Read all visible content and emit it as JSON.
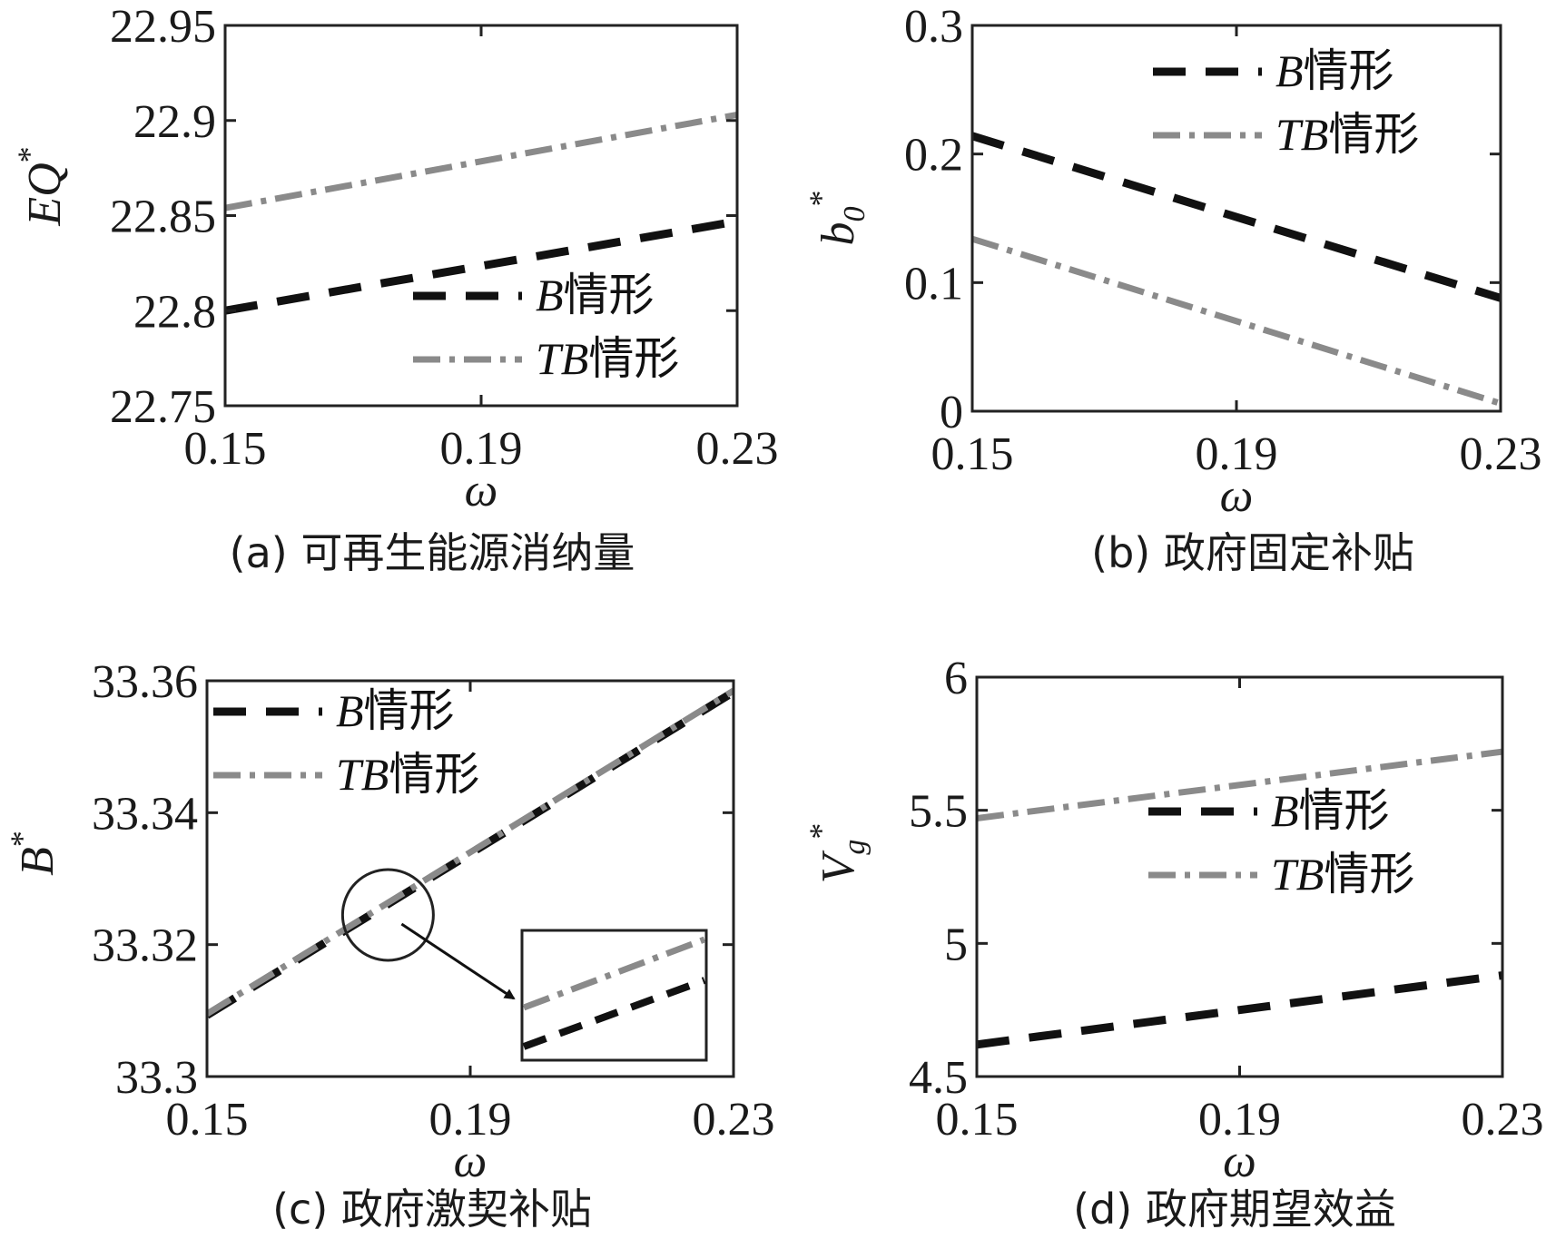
{
  "chart_data": [
    {
      "id": "a",
      "type": "line",
      "caption": "(a) 可再生能源消纳量",
      "xlabel": "ω",
      "ylabel": "EQ*",
      "xlim": [
        0.15,
        0.23
      ],
      "ylim": [
        22.75,
        22.95
      ],
      "xticks": [
        0.15,
        0.19,
        0.23
      ],
      "xtick_labels": [
        "0.15",
        "0.19",
        "0.23"
      ],
      "yticks": [
        22.75,
        22.8,
        22.85,
        22.9,
        22.95
      ],
      "ytick_labels": [
        "22.75",
        "22.8",
        "22.85",
        "22.9",
        "22.95"
      ],
      "legend_position": "bottom-right",
      "series": [
        {
          "name": "B情形",
          "style": "dash",
          "color": "#111111",
          "x": [
            0.15,
            0.23
          ],
          "y": [
            22.8,
            22.847
          ]
        },
        {
          "name": "TB情形",
          "style": "dashdot",
          "color": "#8a8a8a",
          "x": [
            0.15,
            0.23
          ],
          "y": [
            22.854,
            22.903
          ]
        }
      ]
    },
    {
      "id": "b",
      "type": "line",
      "caption": "(b) 政府固定补贴",
      "xlabel": "ω",
      "ylabel": "b0*",
      "xlim": [
        0.15,
        0.23
      ],
      "ylim": [
        0,
        0.3
      ],
      "xticks": [
        0.15,
        0.19,
        0.23
      ],
      "xtick_labels": [
        "0.15",
        "0.19",
        "0.23"
      ],
      "yticks": [
        0,
        0.1,
        0.2,
        0.3
      ],
      "ytick_labels": [
        "0",
        "0.1",
        "0.2",
        "0.3"
      ],
      "legend_position": "top-right",
      "series": [
        {
          "name": "B情形",
          "style": "dash",
          "color": "#111111",
          "x": [
            0.15,
            0.23
          ],
          "y": [
            0.214,
            0.088
          ]
        },
        {
          "name": "TB情形",
          "style": "dashdot",
          "color": "#8a8a8a",
          "x": [
            0.15,
            0.23
          ],
          "y": [
            0.134,
            0.006
          ]
        }
      ]
    },
    {
      "id": "c",
      "type": "line",
      "caption": "(c) 政府激契补贴",
      "xlabel": "ω",
      "ylabel": "B*",
      "xlim": [
        0.15,
        0.23
      ],
      "ylim": [
        33.3,
        33.36
      ],
      "xticks": [
        0.15,
        0.19,
        0.23
      ],
      "xtick_labels": [
        "0.15",
        "0.19",
        "0.23"
      ],
      "yticks": [
        33.3,
        33.32,
        33.34,
        33.36
      ],
      "ytick_labels": [
        "33.3",
        "33.32",
        "33.34",
        "33.36"
      ],
      "legend_position": "top-left",
      "annotation": "circled region magnified in inset at lower right; TB情形 line lies slightly above B情形",
      "series": [
        {
          "name": "B情形",
          "style": "dash",
          "color": "#111111",
          "x": [
            0.15,
            0.23
          ],
          "y": [
            33.3093,
            33.3583
          ]
        },
        {
          "name": "TB情形",
          "style": "dashdot",
          "color": "#8a8a8a",
          "x": [
            0.15,
            0.23
          ],
          "y": [
            33.3095,
            33.3585
          ]
        }
      ]
    },
    {
      "id": "d",
      "type": "line",
      "caption": "(d) 政府期望效益",
      "xlabel": "ω",
      "ylabel": "Vg*",
      "xlim": [
        0.15,
        0.23
      ],
      "ylim": [
        4.5,
        6
      ],
      "xticks": [
        0.15,
        0.19,
        0.23
      ],
      "xtick_labels": [
        "0.15",
        "0.19",
        "0.23"
      ],
      "yticks": [
        4.5,
        5,
        5.5,
        6
      ],
      "ytick_labels": [
        "4.5",
        "5",
        "5.5",
        "6"
      ],
      "legend_position": "right",
      "series": [
        {
          "name": "B情形",
          "style": "dash",
          "color": "#111111",
          "x": [
            0.15,
            0.23
          ],
          "y": [
            4.62,
            4.88
          ]
        },
        {
          "name": "TB情形",
          "style": "dashdot",
          "color": "#8a8a8a",
          "x": [
            0.15,
            0.23
          ],
          "y": [
            5.47,
            5.72
          ]
        }
      ]
    }
  ]
}
